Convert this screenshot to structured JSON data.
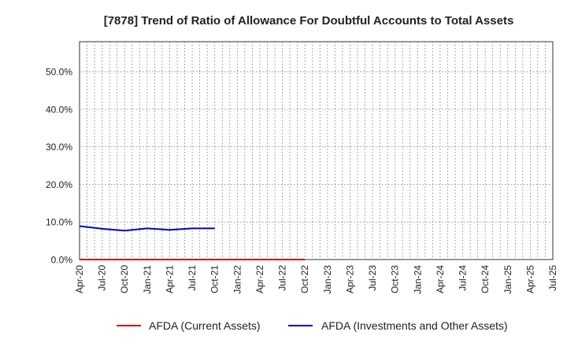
{
  "chart_data": {
    "type": "line",
    "title": "[7878]  Trend of Ratio of Allowance For Doubtful Accounts to Total Assets",
    "xlabel": "",
    "ylabel": "",
    "x_ticks": [
      "Apr-20",
      "Jul-20",
      "Oct-20",
      "Jan-21",
      "Apr-21",
      "Jul-21",
      "Oct-21",
      "Jan-22",
      "Apr-22",
      "Jul-22",
      "Oct-22",
      "Jan-23",
      "Apr-23",
      "Jul-23",
      "Oct-23",
      "Jan-24",
      "Apr-24",
      "Jul-24",
      "Oct-24",
      "Jan-25",
      "Apr-25",
      "Jul-25"
    ],
    "y_ticks": [
      "0.0%",
      "10.0%",
      "20.0%",
      "30.0%",
      "40.0%",
      "50.0%"
    ],
    "ylim": [
      0,
      58
    ],
    "grid": true,
    "legend_position": "bottom",
    "series": [
      {
        "name": "AFDA (Current Assets)",
        "color": "#e00000",
        "x": [
          "Apr-20",
          "Jul-20",
          "Oct-20",
          "Jan-21",
          "Apr-21",
          "Jul-21",
          "Oct-21",
          "Jan-22",
          "Apr-22",
          "Jul-22",
          "Oct-22"
        ],
        "values": [
          0.0,
          0.0,
          0.0,
          0.0,
          0.0,
          0.0,
          0.0,
          0.0,
          0.0,
          0.0,
          0.0
        ]
      },
      {
        "name": "AFDA (Investments and Other Assets)",
        "color": "#0000cc",
        "x": [
          "Apr-20",
          "Jul-20",
          "Oct-20",
          "Jan-21",
          "Apr-21",
          "Jul-21",
          "Oct-21"
        ],
        "values": [
          8.9,
          8.2,
          7.7,
          8.3,
          7.9,
          8.3,
          8.3
        ]
      }
    ]
  }
}
